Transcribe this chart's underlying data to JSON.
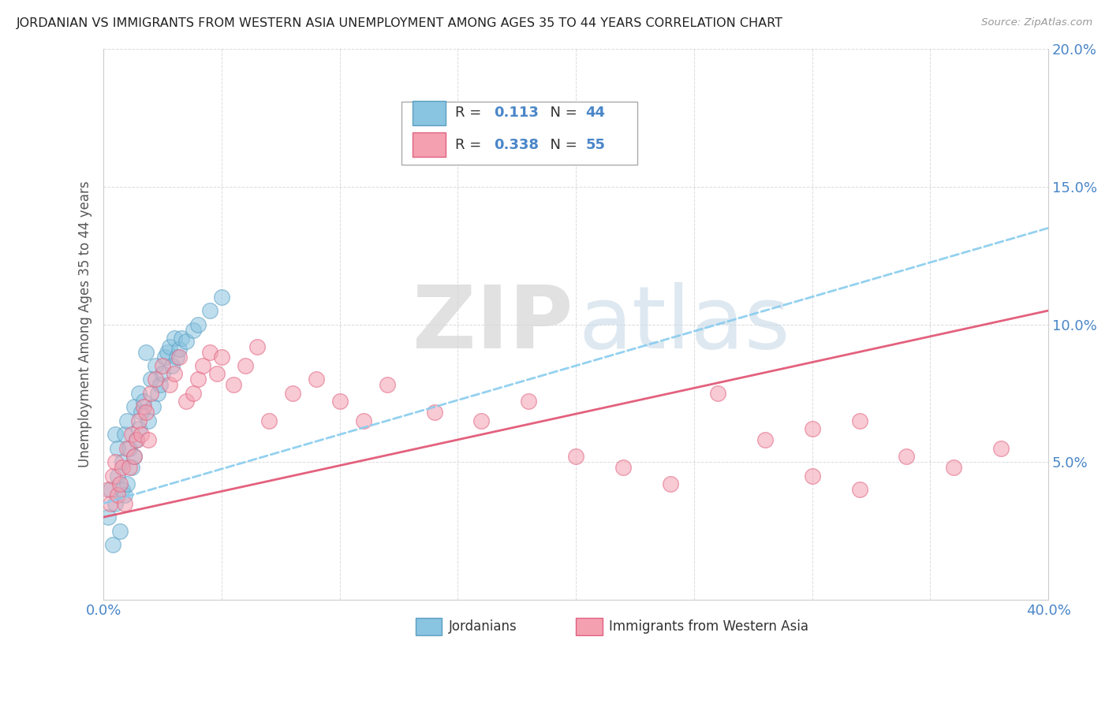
{
  "title": "JORDANIAN VS IMMIGRANTS FROM WESTERN ASIA UNEMPLOYMENT AMONG AGES 35 TO 44 YEARS CORRELATION CHART",
  "source": "Source: ZipAtlas.com",
  "ylabel": "Unemployment Among Ages 35 to 44 years",
  "xmin": 0.0,
  "xmax": 0.4,
  "ymin": 0.0,
  "ymax": 0.2,
  "blue_color": "#89c4e1",
  "blue_edge": "#5a9fc0",
  "pink_color": "#f4a0b0",
  "pink_edge": "#e06080",
  "blue_line_color": "#88ccee",
  "pink_line_color": "#e05070",
  "watermark_zip": "ZIP",
  "watermark_atlas": "atlas",
  "legend_r1": "0.113",
  "legend_n1": "44",
  "legend_r2": "0.338",
  "legend_n2": "55",
  "blue_scatter_x": [
    0.002,
    0.003,
    0.004,
    0.005,
    0.005,
    0.006,
    0.006,
    0.007,
    0.008,
    0.008,
    0.009,
    0.009,
    0.01,
    0.01,
    0.011,
    0.012,
    0.013,
    0.013,
    0.014,
    0.015,
    0.015,
    0.016,
    0.017,
    0.018,
    0.019,
    0.02,
    0.021,
    0.022,
    0.023,
    0.024,
    0.025,
    0.026,
    0.027,
    0.028,
    0.029,
    0.03,
    0.031,
    0.032,
    0.033,
    0.035,
    0.038,
    0.04,
    0.045,
    0.05
  ],
  "blue_scatter_y": [
    0.03,
    0.04,
    0.02,
    0.035,
    0.06,
    0.045,
    0.055,
    0.025,
    0.04,
    0.05,
    0.038,
    0.06,
    0.042,
    0.065,
    0.055,
    0.048,
    0.052,
    0.07,
    0.058,
    0.062,
    0.075,
    0.068,
    0.072,
    0.09,
    0.065,
    0.08,
    0.07,
    0.085,
    0.075,
    0.078,
    0.082,
    0.088,
    0.09,
    0.092,
    0.085,
    0.095,
    0.088,
    0.091,
    0.095,
    0.094,
    0.098,
    0.1,
    0.105,
    0.11
  ],
  "pink_scatter_x": [
    0.002,
    0.003,
    0.004,
    0.005,
    0.006,
    0.007,
    0.008,
    0.009,
    0.01,
    0.011,
    0.012,
    0.013,
    0.014,
    0.015,
    0.016,
    0.017,
    0.018,
    0.019,
    0.02,
    0.022,
    0.025,
    0.028,
    0.03,
    0.032,
    0.035,
    0.038,
    0.04,
    0.042,
    0.045,
    0.048,
    0.05,
    0.055,
    0.06,
    0.065,
    0.07,
    0.08,
    0.09,
    0.1,
    0.11,
    0.12,
    0.14,
    0.16,
    0.18,
    0.2,
    0.22,
    0.24,
    0.26,
    0.28,
    0.3,
    0.32,
    0.34,
    0.36,
    0.38,
    0.32,
    0.3
  ],
  "pink_scatter_y": [
    0.04,
    0.035,
    0.045,
    0.05,
    0.038,
    0.042,
    0.048,
    0.035,
    0.055,
    0.048,
    0.06,
    0.052,
    0.058,
    0.065,
    0.06,
    0.07,
    0.068,
    0.058,
    0.075,
    0.08,
    0.085,
    0.078,
    0.082,
    0.088,
    0.072,
    0.075,
    0.08,
    0.085,
    0.09,
    0.082,
    0.088,
    0.078,
    0.085,
    0.092,
    0.065,
    0.075,
    0.08,
    0.072,
    0.065,
    0.078,
    0.068,
    0.065,
    0.072,
    0.052,
    0.048,
    0.042,
    0.075,
    0.058,
    0.062,
    0.065,
    0.052,
    0.048,
    0.055,
    0.04,
    0.045
  ],
  "blue_line_start_y": 0.035,
  "blue_line_end_y": 0.135,
  "pink_line_start_y": 0.03,
  "pink_line_end_y": 0.105
}
